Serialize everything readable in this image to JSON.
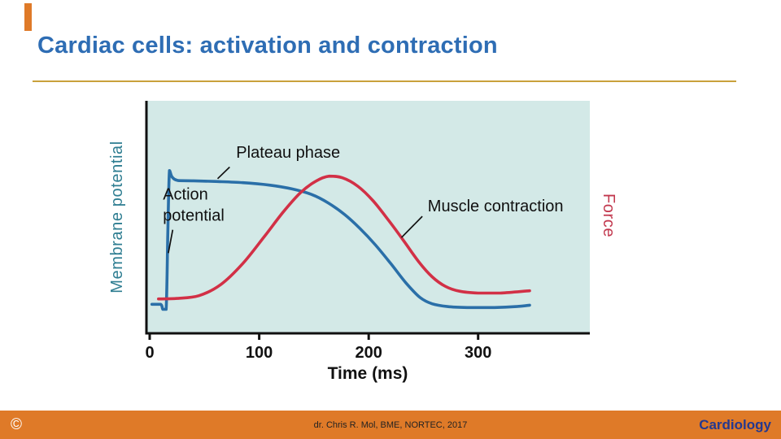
{
  "slide": {
    "title": "Cardiac cells: activation and contraction",
    "footer": {
      "copyright": "©",
      "credit": "dr. Chris R. Mol, BME, NORTEC, 2017",
      "brand": "Cardiology"
    }
  },
  "colors": {
    "accent_orange": "#df7a28",
    "title_blue": "#2e6db4",
    "underline_gold": "#c9a13b",
    "footer_bg": "#df7a28",
    "footer_text": "#222222",
    "copyright": "#ffffff",
    "brand_blue": "#24388f"
  },
  "chart_data": {
    "type": "line",
    "title": "",
    "xlabel": "Time (ms)",
    "ylabel_left": "Membrane potential",
    "ylabel_right": "Force",
    "ylabel_left_color": "#2e7d91",
    "ylabel_right_color": "#c2384e",
    "plot_bg": "#d3e9e7",
    "grid": false,
    "x_ticks": [
      0,
      100,
      200,
      300
    ],
    "xlim": [
      -3,
      402
    ],
    "ylim": [
      0,
      1
    ],
    "series": [
      {
        "name": "Action potential",
        "color": "#2a6fa8",
        "points": [
          [
            2,
            0.125
          ],
          [
            10,
            0.125
          ],
          [
            12,
            0.103
          ],
          [
            15,
            0.103
          ],
          [
            16.5,
            0.42
          ],
          [
            18,
            0.7
          ],
          [
            20.5,
            0.672
          ],
          [
            26,
            0.657
          ],
          [
            40,
            0.656
          ],
          [
            60,
            0.653
          ],
          [
            85,
            0.648
          ],
          [
            110,
            0.637
          ],
          [
            130,
            0.621
          ],
          [
            148,
            0.597
          ],
          [
            163,
            0.561
          ],
          [
            178,
            0.511
          ],
          [
            192,
            0.451
          ],
          [
            206,
            0.381
          ],
          [
            220,
            0.301
          ],
          [
            234,
            0.217
          ],
          [
            247,
            0.154
          ],
          [
            258,
            0.127
          ],
          [
            272,
            0.115
          ],
          [
            290,
            0.111
          ],
          [
            315,
            0.111
          ],
          [
            335,
            0.115
          ],
          [
            347,
            0.121
          ]
        ]
      },
      {
        "name": "Muscle contraction",
        "color": "#d23046",
        "points": [
          [
            8,
            0.148
          ],
          [
            25,
            0.15
          ],
          [
            45,
            0.162
          ],
          [
            65,
            0.21
          ],
          [
            85,
            0.3
          ],
          [
            105,
            0.418
          ],
          [
            122,
            0.522
          ],
          [
            138,
            0.606
          ],
          [
            152,
            0.655
          ],
          [
            164,
            0.676
          ],
          [
            176,
            0.669
          ],
          [
            190,
            0.633
          ],
          [
            204,
            0.57
          ],
          [
            218,
            0.487
          ],
          [
            232,
            0.398
          ],
          [
            246,
            0.306
          ],
          [
            258,
            0.243
          ],
          [
            270,
            0.202
          ],
          [
            283,
            0.181
          ],
          [
            300,
            0.173
          ],
          [
            320,
            0.173
          ],
          [
            347,
            0.183
          ]
        ]
      }
    ],
    "annotations": [
      {
        "label": "Plateau phase",
        "label_t": 79,
        "label_v": 0.755,
        "line": [
          [
            73,
            0.715
          ],
          [
            62,
            0.665
          ]
        ]
      },
      {
        "label": "Action\npotential",
        "label_t": 12,
        "label_v": 0.575,
        "line": [
          [
            21,
            0.445
          ],
          [
            17,
            0.345
          ]
        ]
      },
      {
        "label": "Muscle contraction",
        "label_t": 254,
        "label_v": 0.525,
        "line": [
          [
            249,
            0.503
          ],
          [
            230,
            0.412
          ]
        ]
      }
    ]
  }
}
